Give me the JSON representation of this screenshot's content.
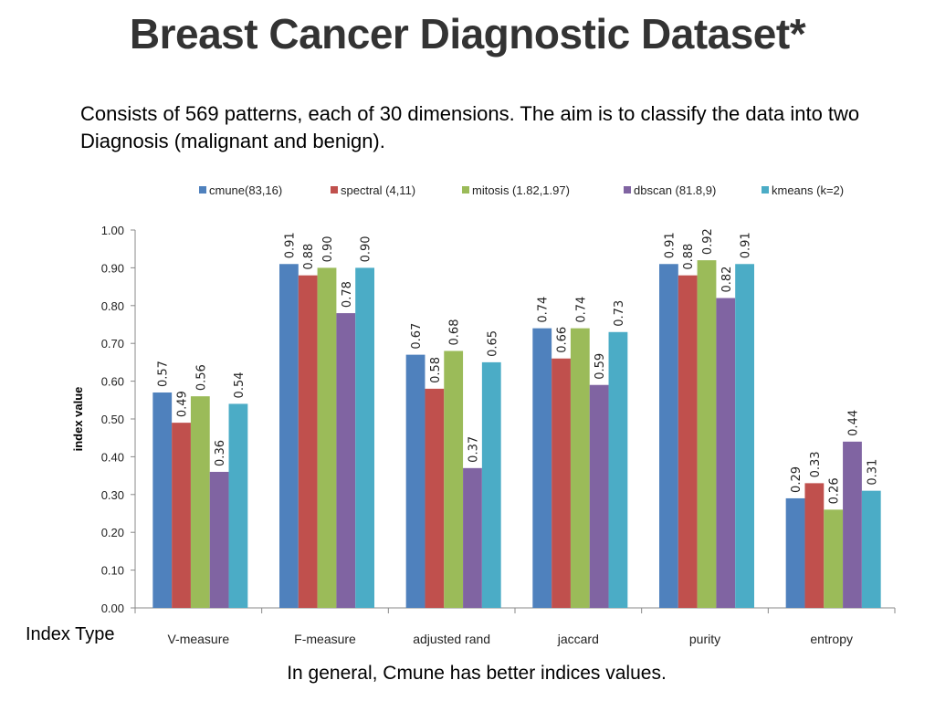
{
  "slide": {
    "title": "Breast Cancer Diagnostic Dataset*",
    "description": "Consists of 569 patterns, each of 30 dimensions. The aim is to classify the data into two Diagnosis (malignant and benign).",
    "x_axis_caption": "Index Type",
    "conclusion": "In general, Cmune has better indices values."
  },
  "chart_data": {
    "type": "bar",
    "title": "",
    "xlabel": "Index Type",
    "ylabel": "index value",
    "ylim": [
      0,
      1
    ],
    "yticks": [
      0.0,
      0.1,
      0.2,
      0.3,
      0.4,
      0.5,
      0.6,
      0.7,
      0.8,
      0.9,
      1.0
    ],
    "ytick_labels": [
      "0.00",
      "0.10",
      "0.20",
      "0.30",
      "0.40",
      "0.50",
      "0.60",
      "0.70",
      "0.80",
      "0.90",
      "1.00"
    ],
    "grid": false,
    "legend_position": "top",
    "categories": [
      "V-measure",
      "F-measure",
      "adjusted rand",
      "jaccard",
      "purity",
      "entropy"
    ],
    "series": [
      {
        "name": "cmune(83,16)",
        "color": "#4F81BD",
        "values": [
          0.57,
          0.91,
          0.67,
          0.74,
          0.91,
          0.29
        ]
      },
      {
        "name": "spectral (4,11)",
        "color": "#C0504D",
        "values": [
          0.49,
          0.88,
          0.58,
          0.66,
          0.88,
          0.33
        ]
      },
      {
        "name": "mitosis (1.82,1.97)",
        "color": "#9BBB59",
        "values": [
          0.56,
          0.9,
          0.68,
          0.74,
          0.92,
          0.26
        ]
      },
      {
        "name": "dbscan (81.8,9)",
        "color": "#8064A2",
        "values": [
          0.36,
          0.78,
          0.37,
          0.59,
          0.82,
          0.44
        ]
      },
      {
        "name": "kmeans (k=2)",
        "color": "#4BACC6",
        "values": [
          0.54,
          0.9,
          0.65,
          0.73,
          0.91,
          0.31
        ]
      }
    ],
    "data_labels": true
  }
}
